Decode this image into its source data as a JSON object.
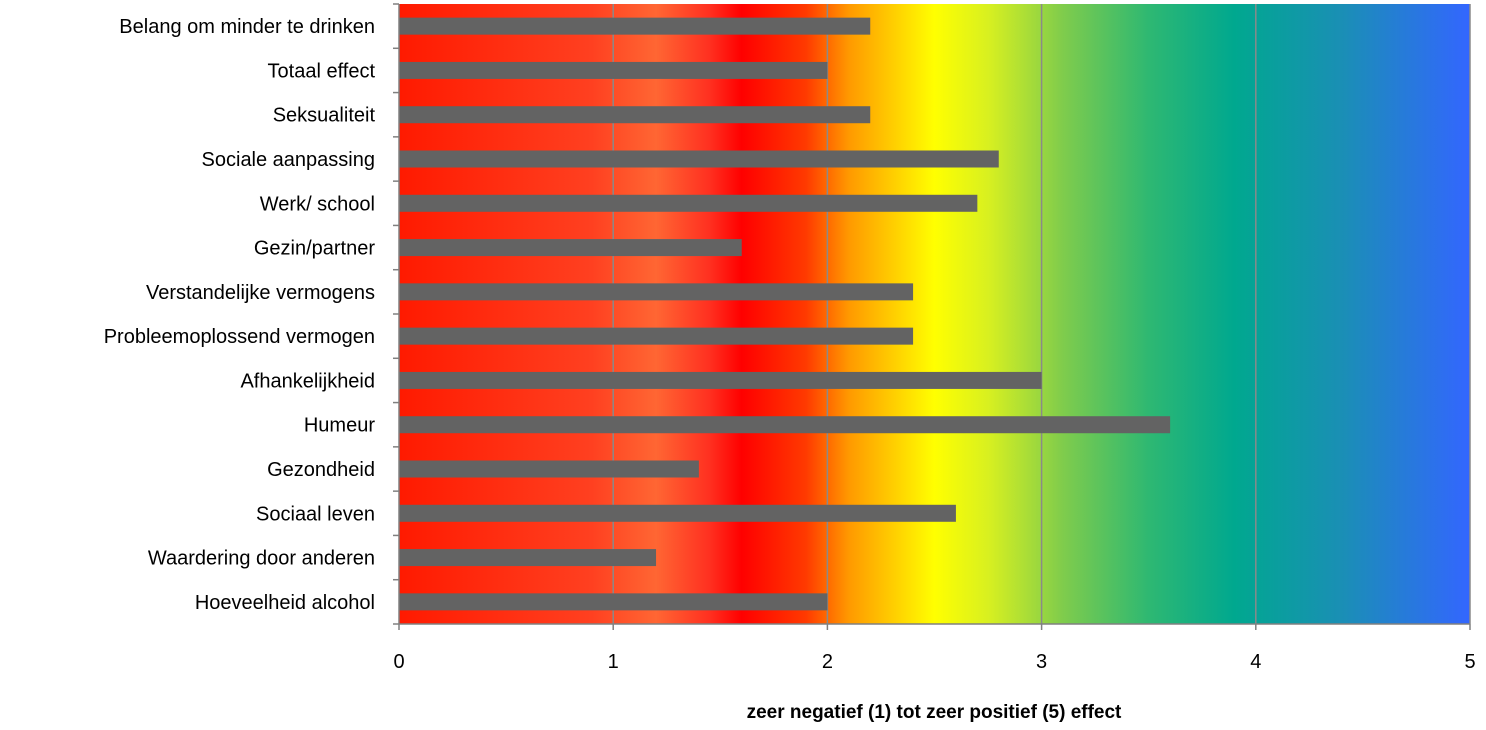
{
  "chart_data": {
    "type": "bar",
    "orientation": "horizontal",
    "categories": [
      "Belang om minder te drinken",
      "Totaal effect",
      "Seksualiteit",
      "Sociale aanpassing",
      "Werk/ school",
      "Gezin/partner",
      "Verstandelijke vermogens",
      "Probleemoplossend vermogen",
      "Afhankelijkheid",
      "Humeur",
      "Gezondheid",
      "Sociaal leven",
      "Waardering door anderen",
      "Hoeveelheid alcohol"
    ],
    "values": [
      2.2,
      2.0,
      2.2,
      2.8,
      2.7,
      1.6,
      2.4,
      2.4,
      3.0,
      3.6,
      1.4,
      2.6,
      1.2,
      2.0
    ],
    "xlabel": "zeer negatief (1) tot zeer positief (5) effect",
    "ylabel": "",
    "xlim": [
      0,
      5
    ],
    "xticks": [
      "0",
      "1",
      "2",
      "3",
      "4",
      "5"
    ],
    "grid": "vertical",
    "bar_color": "#636363",
    "background_gradient": "red-orange-yellow-green-teal-blue",
    "gradient_colors": [
      "#ff1a00",
      "#ff6633",
      "#ff0000",
      "#ff9900",
      "#ffff00",
      "#7fcc4c",
      "#00a88f",
      "#3366ff"
    ]
  }
}
